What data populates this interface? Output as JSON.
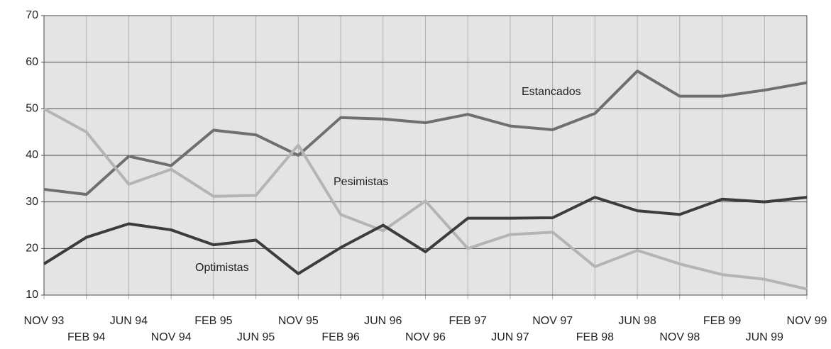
{
  "chart_data": {
    "type": "line",
    "categories": [
      "NOV 93",
      "FEB 94",
      "JUN 94",
      "NOV 94",
      "FEB 95",
      "JUN 95",
      "NOV 95",
      "FEB 96",
      "JUN 96",
      "NOV 96",
      "FEB 97",
      "JUN 97",
      "NOV 97",
      "FEB 98",
      "JUN 98",
      "NOV 98",
      "FEB 99",
      "JUN 99",
      "NOV 99"
    ],
    "series": [
      {
        "name": "Estancados",
        "color": "#6f6f6f",
        "values": [
          32.7,
          31.6,
          39.8,
          37.8,
          45.4,
          44.4,
          40,
          48.1,
          47.8,
          47,
          48.8,
          46.3,
          45.5,
          49,
          58.1,
          52.7,
          52.7,
          54,
          55.6
        ]
      },
      {
        "name": "Pesimistas",
        "color": "#b4b4b4",
        "values": [
          50,
          45,
          33.8,
          37,
          31.2,
          31.4,
          42.2,
          27.3,
          23.8,
          30.2,
          20,
          23,
          23.5,
          16.1,
          19.6,
          16.7,
          14.4,
          13.4,
          11.3
        ]
      },
      {
        "name": "Optimistas",
        "color": "#3c3c3c",
        "values": [
          16.7,
          22.4,
          25.3,
          24,
          20.8,
          21.8,
          14.6,
          20.2,
          25,
          19.3,
          26.5,
          26.5,
          26.6,
          31,
          28.1,
          27.3,
          30.6,
          30,
          31
        ]
      }
    ],
    "ylim": [
      10,
      70
    ],
    "yticks": [
      10,
      20,
      30,
      40,
      50,
      60,
      70
    ],
    "grid": true
  }
}
